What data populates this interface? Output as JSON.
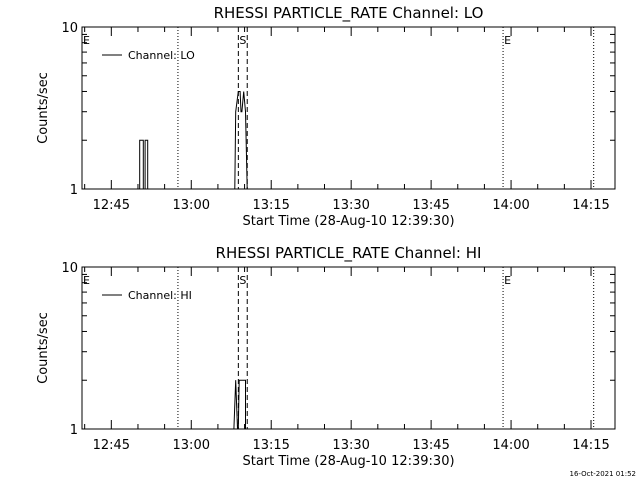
{
  "chart_data": [
    {
      "type": "line",
      "title": "RHESSI PARTICLE_RATE Channel: LO",
      "xlabel": "Start Time (28-Aug-10 12:39:30)",
      "ylabel": "Counts/sec",
      "yscale": "log",
      "ylim": [
        1,
        10
      ],
      "yticks": [
        {
          "v": 1,
          "label": "1"
        },
        {
          "v": 10,
          "label": "10"
        }
      ],
      "xlim": [
        "12:39:30",
        "14:19:30"
      ],
      "xticks": [
        "12:45",
        "13:00",
        "13:15",
        "13:30",
        "13:45",
        "14:00",
        "14:15"
      ],
      "legend": {
        "label": "Channel: LO",
        "placement": "top-left"
      },
      "series": [
        {
          "name": "Channel: LO",
          "points": [
            [
              "12:50:20",
              1
            ],
            [
              "12:50:20",
              2
            ],
            [
              "12:51:00",
              2
            ],
            [
              "12:51:00",
              1
            ],
            [
              "12:51:20",
              1
            ],
            [
              "12:51:20",
              2
            ],
            [
              "12:51:50",
              2
            ],
            [
              "12:51:50",
              1
            ],
            [
              "13:08:10",
              1
            ],
            [
              "13:08:20",
              3
            ],
            [
              "13:08:50",
              4
            ],
            [
              "13:09:10",
              4
            ],
            [
              "13:09:20",
              3
            ],
            [
              "13:09:30",
              3
            ],
            [
              "13:09:50",
              4
            ],
            [
              "13:10:10",
              3
            ],
            [
              "13:10:30",
              1
            ]
          ]
        }
      ],
      "vlines": [
        {
          "x": "12:39:30",
          "style": "dotted",
          "label": "E"
        },
        {
          "x": "12:57:30",
          "style": "dotted",
          "label": ""
        },
        {
          "x": "13:08:50",
          "style": "dashed",
          "label": "S"
        },
        {
          "x": "13:10:30",
          "style": "dashed",
          "label": ""
        },
        {
          "x": "13:58:30",
          "style": "dotted",
          "label": "E"
        },
        {
          "x": "14:15:30",
          "style": "dotted",
          "label": ""
        }
      ]
    },
    {
      "type": "line",
      "title": "RHESSI PARTICLE_RATE Channel: HI",
      "xlabel": "Start Time (28-Aug-10 12:39:30)",
      "ylabel": "Counts/sec",
      "yscale": "log",
      "ylim": [
        1,
        10
      ],
      "yticks": [
        {
          "v": 1,
          "label": "1"
        },
        {
          "v": 10,
          "label": "10"
        }
      ],
      "xlim": [
        "12:39:30",
        "14:19:30"
      ],
      "xticks": [
        "12:45",
        "13:00",
        "13:15",
        "13:30",
        "13:45",
        "14:00",
        "14:15"
      ],
      "legend": {
        "label": "Channel: HI",
        "placement": "top-left"
      },
      "series": [
        {
          "name": "Channel: HI",
          "points": [
            [
              "13:08:00",
              1
            ],
            [
              "13:08:20",
              2
            ],
            [
              "13:08:40",
              1
            ],
            [
              "13:08:50",
              1
            ],
            [
              "13:09:00",
              2
            ],
            [
              "13:10:10",
              2
            ],
            [
              "13:10:10",
              1
            ]
          ]
        }
      ],
      "vlines": [
        {
          "x": "12:39:30",
          "style": "dotted",
          "label": "E"
        },
        {
          "x": "12:57:30",
          "style": "dotted",
          "label": ""
        },
        {
          "x": "13:08:50",
          "style": "dashed",
          "label": "S"
        },
        {
          "x": "13:10:30",
          "style": "dashed",
          "label": ""
        },
        {
          "x": "13:58:30",
          "style": "dotted",
          "label": "E"
        },
        {
          "x": "14:15:30",
          "style": "dotted",
          "label": ""
        }
      ]
    }
  ],
  "timestamp": "16-Oct-2021 01:52"
}
